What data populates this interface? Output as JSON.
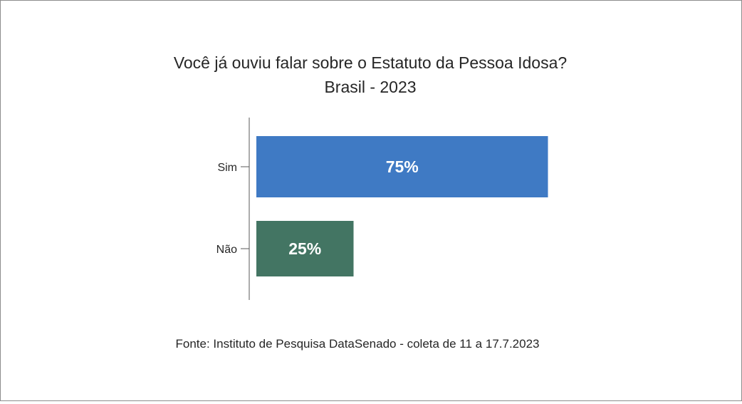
{
  "chart_data": {
    "type": "bar",
    "orientation": "horizontal",
    "title": "Você já ouviu falar sobre o Estatuto da Pessoa Idosa?",
    "subtitle": "Brasil - 2023",
    "categories": [
      "Sim",
      "Não"
    ],
    "values": [
      75,
      25
    ],
    "data_labels": [
      "75%",
      "25%"
    ],
    "colors": [
      "#3f7ac4",
      "#437563"
    ],
    "xlim": [
      0,
      100
    ],
    "grid": false,
    "legend": "none",
    "source": "Fonte: Instituto de Pesquisa DataSenado - coleta de 11 a 17.7.2023"
  }
}
